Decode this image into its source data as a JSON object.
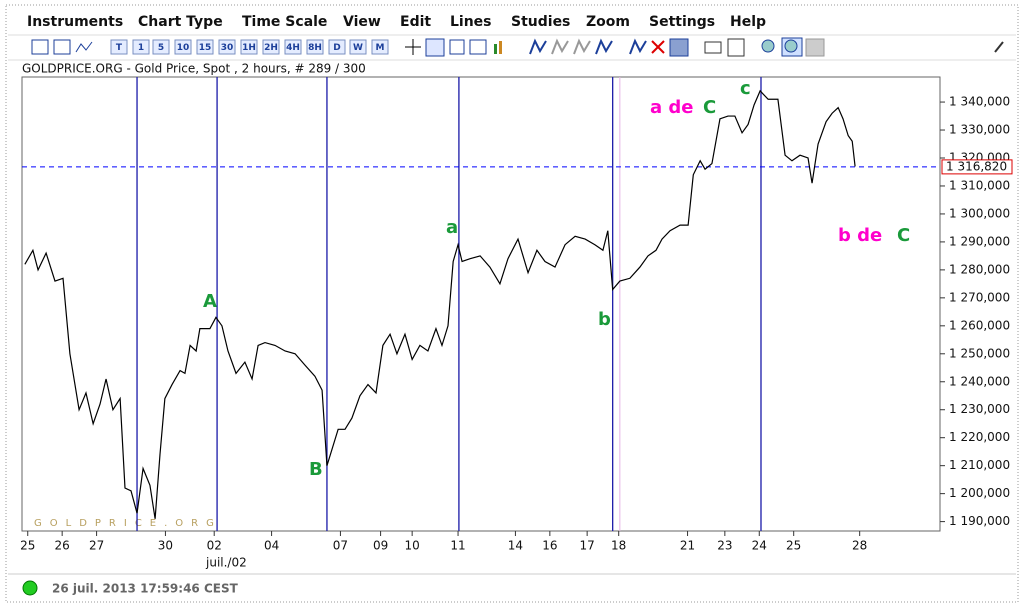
{
  "menu": [
    "Instruments",
    "Chart Type",
    "Time Scale",
    "View",
    "Edit",
    "Lines",
    "Studies",
    "Zoom",
    "Settings",
    "Help"
  ],
  "toolbar": {
    "timescale_buttons": [
      "T",
      "1",
      "5",
      "10",
      "15",
      "30",
      "1H",
      "2H",
      "4H",
      "8H",
      "D",
      "W",
      "M"
    ]
  },
  "chart": {
    "type": "line",
    "subtitle": "GOLDPRICE.ORG - Gold Price, Spot , 2 hours, # 289 / 300",
    "watermark": "GOLDPRICE.ORG",
    "xlim": [
      0,
      320
    ],
    "ylim": [
      1187000,
      1348600
    ],
    "series": [
      {
        "color": "#000000",
        "x": [
          1.0,
          3.8,
          5.6,
          8.4,
          11.5,
          14.3,
          16.7,
          19.9,
          22.3,
          24.8,
          27.2,
          29.3,
          31.7,
          34.2,
          35.9,
          38.0,
          40.1,
          42.2,
          44.6,
          46.4,
          48.1,
          49.8,
          52.3,
          55.1,
          56.8,
          58.6,
          60.7,
          62.0,
          65.5,
          67.6,
          69.7,
          71.8,
          74.6,
          77.7,
          80.2,
          82.3,
          84.7,
          88.2,
          91.7,
          95.2,
          98.6,
          102.1,
          104.6,
          106.3,
          108.1,
          110.2,
          112.6,
          115.0,
          117.8,
          120.6,
          123.4,
          125.8,
          128.3,
          130.7,
          133.5,
          136.0,
          138.7,
          141.5,
          144.3,
          146.4,
          148.5,
          150.3,
          152.0,
          153.4,
          156.2,
          159.7,
          163.1,
          166.6,
          169.4,
          172.9,
          176.4,
          179.5,
          182.3,
          185.8,
          189.3,
          192.8,
          196.3,
          199.7,
          202.5,
          204.2,
          205.9,
          208.4,
          211.9,
          215.4,
          218.2,
          221.0,
          223.1,
          225.9,
          229.4,
          232.2,
          234.0,
          236.4,
          238.1,
          240.5,
          243.3,
          246.1,
          248.5,
          251.0,
          253.1,
          255.2,
          257.3,
          260.1,
          263.5,
          266.0,
          268.4,
          271.2,
          274.0,
          275.4,
          277.5,
          280.3,
          282.4,
          284.5,
          286.2,
          288.0,
          289.4,
          290.4
        ],
        "values": [
          1282000,
          1287000,
          1280000,
          1286000,
          1276000,
          1277000,
          1250000,
          1230000,
          1236000,
          1225000,
          1232000,
          1241000,
          1230000,
          1234000,
          1202000,
          1201000,
          1193000,
          1209000,
          1203000,
          1191000,
          1214000,
          1234000,
          1239000,
          1244000,
          1243000,
          1253000,
          1251000,
          1259000,
          1259000,
          1263000,
          1260000,
          1251000,
          1243000,
          1247000,
          1241000,
          1253000,
          1254000,
          1253000,
          1251000,
          1250000,
          1246000,
          1242000,
          1237000,
          1210000,
          1216000,
          1223000,
          1223000,
          1227000,
          1235000,
          1239000,
          1236000,
          1253000,
          1257000,
          1250000,
          1257000,
          1248000,
          1253000,
          1251000,
          1259000,
          1253000,
          1260000,
          1283000,
          1289000,
          1283000,
          1284000,
          1285000,
          1281000,
          1275000,
          1284000,
          1291000,
          1279000,
          1287000,
          1283000,
          1281000,
          1289000,
          1292000,
          1291000,
          1289000,
          1287000,
          1294000,
          1273000,
          1276000,
          1277000,
          1281000,
          1285000,
          1287000,
          1291000,
          1294000,
          1296000,
          1296000,
          1314000,
          1319000,
          1316000,
          1318000,
          1334000,
          1335000,
          1335000,
          1329000,
          1332000,
          1339000,
          1344000,
          1341000,
          1341000,
          1321000,
          1319000,
          1321000,
          1320000,
          1311000,
          1325000,
          1333000,
          1336000,
          1338000,
          1334000,
          1328000,
          1326000,
          1317000
        ]
      }
    ],
    "yticks": [
      {
        "value": 1190000,
        "label": "1 190,000"
      },
      {
        "value": 1200000,
        "label": "1 200,000"
      },
      {
        "value": 1210000,
        "label": "1 210,000"
      },
      {
        "value": 1220000,
        "label": "1 220,000"
      },
      {
        "value": 1230000,
        "label": "1 230,000"
      },
      {
        "value": 1240000,
        "label": "1 240,000"
      },
      {
        "value": 1250000,
        "label": "1 250,000"
      },
      {
        "value": 1260000,
        "label": "1 260,000"
      },
      {
        "value": 1270000,
        "label": "1 270,000"
      },
      {
        "value": 1280000,
        "label": "1 280,000"
      },
      {
        "value": 1290000,
        "label": "1 290,000"
      },
      {
        "value": 1300000,
        "label": "1 300,000"
      },
      {
        "value": 1310000,
        "label": "1 310,000"
      },
      {
        "value": 1320000,
        "label": "1 320,000"
      },
      {
        "value": 1330000,
        "label": "1 330,000"
      },
      {
        "value": 1340000,
        "label": "1 340,000"
      }
    ],
    "xticks": [
      {
        "value": 2,
        "label": "25"
      },
      {
        "value": 14,
        "label": "26"
      },
      {
        "value": 26,
        "label": "27"
      },
      {
        "value": 50,
        "label": "30"
      },
      {
        "value": 67,
        "label": "02"
      },
      {
        "value": 87,
        "label": "04"
      },
      {
        "value": 111,
        "label": "07"
      },
      {
        "value": 125,
        "label": "09"
      },
      {
        "value": 136,
        "label": "10"
      },
      {
        "value": 152,
        "label": "11"
      },
      {
        "value": 172,
        "label": "14"
      },
      {
        "value": 184,
        "label": "16"
      },
      {
        "value": 197,
        "label": "17"
      },
      {
        "value": 208,
        "label": "18"
      },
      {
        "value": 232,
        "label": "21"
      },
      {
        "value": 245,
        "label": "23"
      },
      {
        "value": 257,
        "label": "24"
      },
      {
        "value": 269,
        "label": "25"
      },
      {
        "value": 292,
        "label": "28"
      }
    ],
    "month_label": "juil./02",
    "current_price": {
      "value": 1316820,
      "label": "1 316,820",
      "color": "#0000ff"
    },
    "vertical_lines": {
      "color": "#1a1aa8",
      "x": [
        40.1,
        68,
        106.3,
        152.3,
        205.9,
        257.6
      ]
    },
    "marker_line": {
      "color": "#e6b3e6",
      "x": 208.4
    },
    "annotations": [
      {
        "text": "a de",
        "color": "#ff00cc"
      },
      {
        "text": "C",
        "color": "#1a9a3a"
      },
      {
        "text": "c",
        "color": "#1a9a3a"
      },
      {
        "text": "A",
        "color": "#1a9a3a"
      },
      {
        "text": "a",
        "color": "#1a9a3a"
      },
      {
        "text": "b",
        "color": "#1a9a3a"
      },
      {
        "text": "B",
        "color": "#1a9a3a"
      },
      {
        "text": "b de",
        "color": "#ff00cc"
      },
      {
        "text": "C",
        "color": "#1a9a3a"
      }
    ]
  },
  "status": "26 juil. 2013 17:59:46 CEST"
}
